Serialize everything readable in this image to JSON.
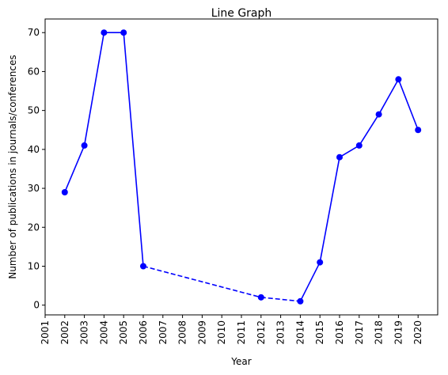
{
  "chart_data": {
    "type": "line",
    "title": "Line Graph",
    "xlabel": "Year",
    "ylabel": "Number of publications in journals/conferences",
    "x_ticks": [
      "2001",
      "2002",
      "2003",
      "2004",
      "2005",
      "2006",
      "2007",
      "2008",
      "2009",
      "2010",
      "2011",
      "2012",
      "2013",
      "2014",
      "2015",
      "2016",
      "2017",
      "2018",
      "2019",
      "2020"
    ],
    "y_ticks": [
      0,
      10,
      20,
      30,
      40,
      50,
      60,
      70
    ],
    "xlim": [
      2001,
      2021
    ],
    "ylim": [
      -2.5,
      73.5
    ],
    "grid": false,
    "series": [
      {
        "color": "#0000ff",
        "marker": "circle",
        "points": [
          {
            "x": 2002,
            "y": 29
          },
          {
            "x": 2003,
            "y": 41
          },
          {
            "x": 2004,
            "y": 70
          },
          {
            "x": 2005,
            "y": 70
          },
          {
            "x": 2006,
            "y": 10
          },
          {
            "x": 2012,
            "y": 2
          },
          {
            "x": 2014,
            "y": 1
          },
          {
            "x": 2015,
            "y": 11
          },
          {
            "x": 2016,
            "y": 38
          },
          {
            "x": 2017,
            "y": 41
          },
          {
            "x": 2018,
            "y": 49
          },
          {
            "x": 2019,
            "y": 58
          },
          {
            "x": 2020,
            "y": 45
          }
        ],
        "dashed_segments": [
          [
            2006,
            2012
          ],
          [
            2012,
            2014
          ]
        ]
      }
    ]
  }
}
